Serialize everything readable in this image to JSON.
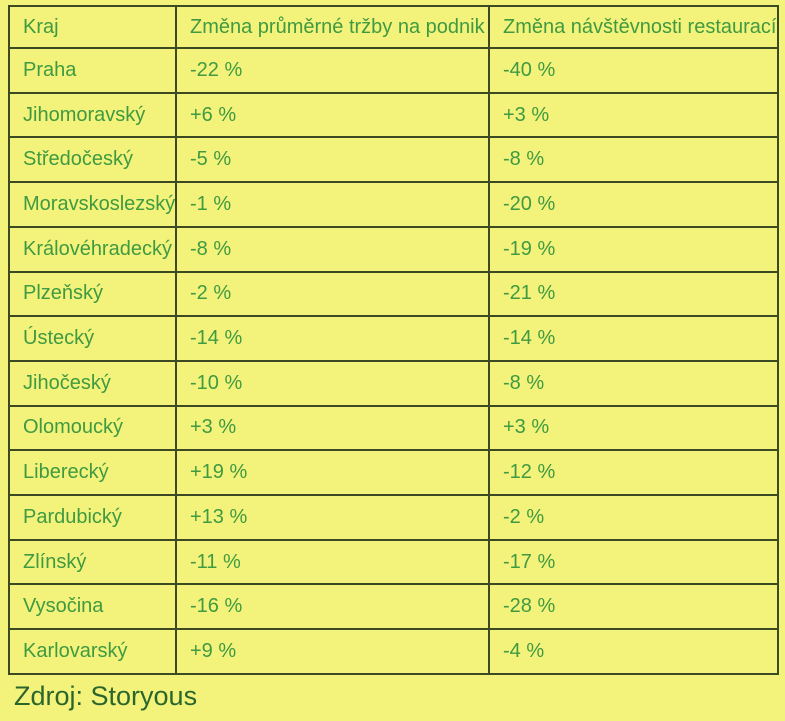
{
  "chart_data": {
    "type": "table",
    "title": "",
    "columns": [
      "Kraj",
      "Změna průměrné tržby na podnik",
      "Změna návštěvnosti restaurací"
    ],
    "rows": [
      [
        "Praha",
        "-22 %",
        "-40 %"
      ],
      [
        "Jihomoravský",
        "+6 %",
        "+3 %"
      ],
      [
        "Středočeský",
        "-5 %",
        "-8 %"
      ],
      [
        "Moravskoslezský",
        "-1 %",
        "-20 %"
      ],
      [
        "Královéhradecký",
        "-8 %",
        "-19 %"
      ],
      [
        "Plzeňský",
        "-2 %",
        "-21 %"
      ],
      [
        "Ústecký",
        "-14 %",
        "-14 %"
      ],
      [
        "Jihočeský",
        "-10 %",
        "-8 %"
      ],
      [
        "Olomoucký",
        "+3 %",
        "+3 %"
      ],
      [
        "Liberecký",
        "+19 %",
        "-12 %"
      ],
      [
        "Pardubický",
        "+13 %",
        "-2 %"
      ],
      [
        "Zlínský",
        "-11 %",
        "-17 %"
      ],
      [
        "Vysočina",
        "-16 %",
        "-28 %"
      ],
      [
        "Karlovarský",
        "+9 %",
        "-4 %"
      ]
    ],
    "source": "Zdroj: Storyous",
    "legend": "none",
    "grid": "on"
  },
  "colors": {
    "background": "#f3f37b",
    "cell_text": "#3f9a41",
    "border": "#3b4a23",
    "source_text": "#2a662c"
  }
}
